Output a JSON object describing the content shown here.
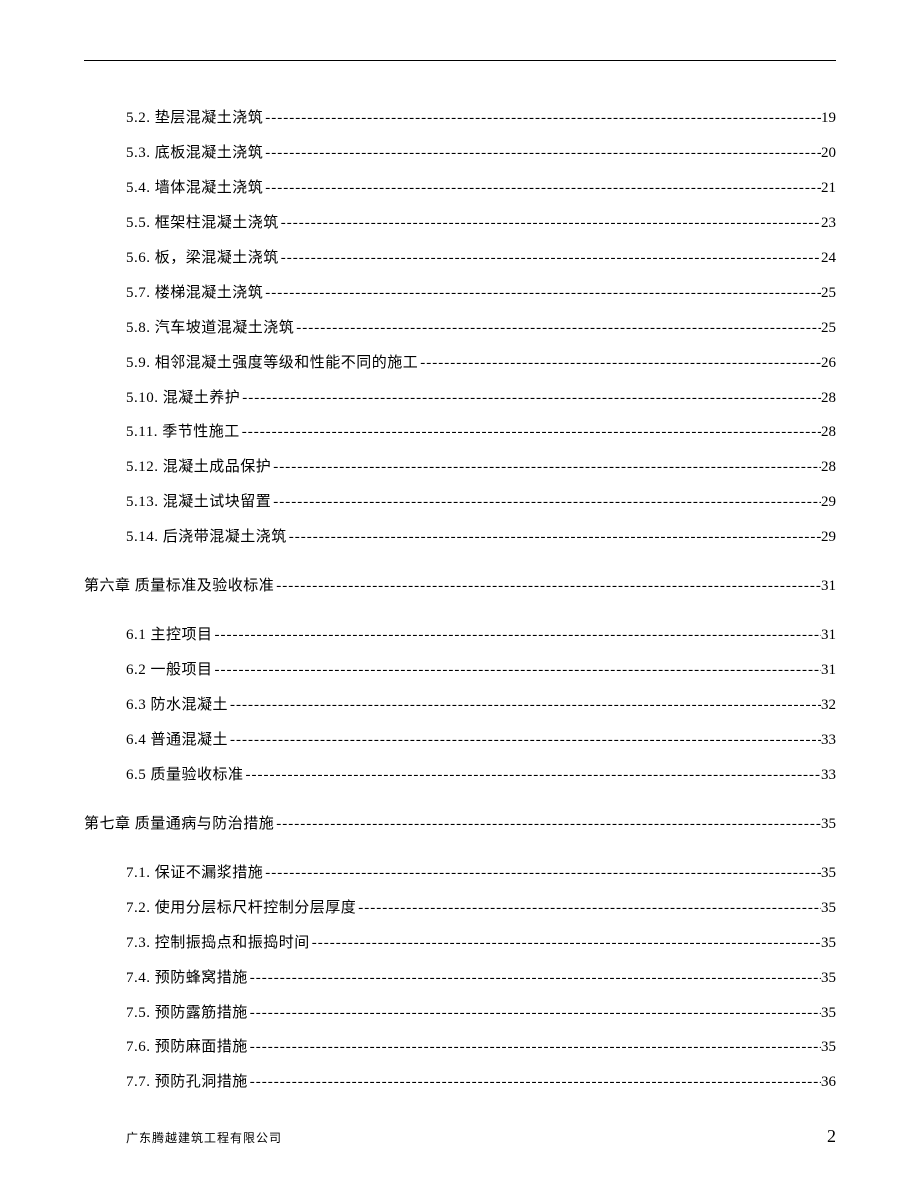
{
  "colors": {
    "text": "#000000",
    "background": "#ffffff",
    "rule": "#000000"
  },
  "typography": {
    "body_fontsize_pt": 11,
    "line_height": 2.33,
    "footer_fontsize_pt": 9,
    "pagenum_fontsize_pt": 14
  },
  "toc": {
    "entries": [
      {
        "level": "sub",
        "label": "5.2. 垫层混凝土浇筑 ",
        "page": "19"
      },
      {
        "level": "sub",
        "label": "5.3. 底板混凝土浇筑 ",
        "page": "20"
      },
      {
        "level": "sub",
        "label": "5.4. 墙体混凝土浇筑 ",
        "page": "21"
      },
      {
        "level": "sub",
        "label": "5.5. 框架柱混凝土浇筑 ",
        "page": "23"
      },
      {
        "level": "sub",
        "label": "5.6. 板，梁混凝土浇筑 ",
        "page": "24"
      },
      {
        "level": "sub",
        "label": "5.7. 楼梯混凝土浇筑 ",
        "page": "25"
      },
      {
        "level": "sub",
        "label": "5.8. 汽车坡道混凝土浇筑 ",
        "page": "25"
      },
      {
        "level": "sub",
        "label": "5.9. 相邻混凝土强度等级和性能不同的施工 ",
        "page": "26"
      },
      {
        "level": "sub",
        "label": "5.10. 混凝土养护 ",
        "page": "28"
      },
      {
        "level": "sub",
        "label": "5.11. 季节性施工 ",
        "page": "28"
      },
      {
        "level": "sub",
        "label": "5.12. 混凝土成品保护 ",
        "page": "28"
      },
      {
        "level": "sub",
        "label": "5.13. 混凝土试块留置 ",
        "page": "29"
      },
      {
        "level": "sub",
        "label": "5.14. 后浇带混凝土浇筑 ",
        "page": "29"
      },
      {
        "level": "ch",
        "label": "第六章 质量标准及验收标准",
        "page": "31"
      },
      {
        "level": "sub",
        "label": "6.1 主控项目 ",
        "page": "31"
      },
      {
        "level": "sub",
        "label": "6.2 一般项目 ",
        "page": "31"
      },
      {
        "level": "sub",
        "label": "6.3 防水混凝土 ",
        "page": "32"
      },
      {
        "level": "sub",
        "label": "6.4 普通混凝土 ",
        "page": "33"
      },
      {
        "level": "sub",
        "label": "6.5 质量验收标准 ",
        "page": "33"
      },
      {
        "level": "ch",
        "label": "第七章 质量通病与防治措施",
        "page": "35"
      },
      {
        "level": "sub",
        "label": "7.1. 保证不漏浆措施 ",
        "page": "35"
      },
      {
        "level": "sub",
        "label": "7.2. 使用分层标尺杆控制分层厚度 ",
        "page": "35"
      },
      {
        "level": "sub",
        "label": "7.3. 控制振捣点和振捣时间 ",
        "page": "35"
      },
      {
        "level": "sub",
        "label": "7.4. 预防蜂窝措施 ",
        "page": "35"
      },
      {
        "level": "sub",
        "label": "7.5. 预防露筋措施 ",
        "page": "35"
      },
      {
        "level": "sub",
        "label": "7.6. 预防麻面措施 ",
        "page": "35"
      },
      {
        "level": "sub",
        "label": "7.7. 预防孔洞措施 ",
        "page": "36"
      }
    ]
  },
  "footer": {
    "company": "广东腾越建筑工程有限公司",
    "page_number": "2"
  }
}
